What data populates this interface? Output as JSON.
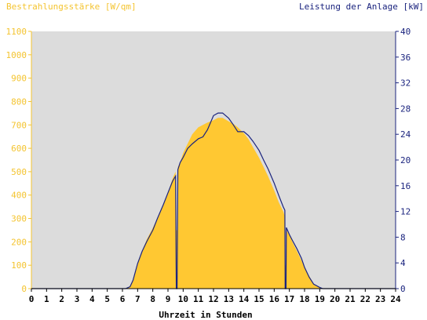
{
  "chart_data": {
    "type": "area",
    "left_axis_title": "Bestrahlungsstärke [W/qm]",
    "right_axis_title": "Leistung der Anlage [kW]",
    "xlabel": "Uhrzeit in Stunden",
    "x_ticks": [
      "0",
      "1",
      "2",
      "3",
      "4",
      "5",
      "6",
      "7",
      "8",
      "9",
      "10",
      "11",
      "12",
      "13",
      "14",
      "15",
      "16",
      "17",
      "18",
      "19",
      "20",
      "21",
      "22",
      "23",
      "24"
    ],
    "y_left_ticks": [
      "0",
      "100",
      "200",
      "300",
      "400",
      "500",
      "600",
      "700",
      "800",
      "900",
      "1000",
      "1100"
    ],
    "y_right_ticks": [
      "0",
      "4",
      "8",
      "12",
      "16",
      "20",
      "24",
      "28",
      "32",
      "36",
      "40"
    ],
    "xlim": [
      0,
      24
    ],
    "ylim_left": [
      0,
      1100
    ],
    "ylim_right": [
      0,
      40
    ],
    "colors": {
      "irradiance": "#ffc832",
      "power": "#1a237e",
      "plot_bg": "#dcdcdc",
      "left_axis": "#f4c430",
      "right_axis": "#1a237e"
    },
    "series": [
      {
        "name": "Bestrahlungsstärke",
        "axis": "left",
        "points": [
          [
            0,
            0
          ],
          [
            6.2,
            0
          ],
          [
            6.5,
            8
          ],
          [
            6.7,
            40
          ],
          [
            7,
            110
          ],
          [
            7.3,
            160
          ],
          [
            7.6,
            210
          ],
          [
            8,
            260
          ],
          [
            8.3,
            300
          ],
          [
            8.7,
            360
          ],
          [
            9,
            410
          ],
          [
            9.3,
            470
          ],
          [
            9.5,
            500
          ],
          [
            9.55,
            250
          ],
          [
            9.6,
            250
          ],
          [
            9.65,
            520
          ],
          [
            9.8,
            540
          ],
          [
            10,
            580
          ],
          [
            10.3,
            620
          ],
          [
            10.6,
            660
          ],
          [
            11,
            690
          ],
          [
            11.3,
            700
          ],
          [
            11.6,
            710
          ],
          [
            12,
            720
          ],
          [
            12.3,
            730
          ],
          [
            12.6,
            730
          ],
          [
            13,
            715
          ],
          [
            13.3,
            705
          ],
          [
            13.6,
            690
          ],
          [
            14,
            665
          ],
          [
            14.3,
            640
          ],
          [
            14.6,
            605
          ],
          [
            15,
            560
          ],
          [
            15.3,
            520
          ],
          [
            15.6,
            480
          ],
          [
            16,
            420
          ],
          [
            16.3,
            370
          ],
          [
            16.6,
            330
          ],
          [
            16.7,
            310
          ],
          [
            16.72,
            100
          ],
          [
            16.78,
            100
          ],
          [
            16.8,
            250
          ],
          [
            17,
            230
          ],
          [
            17.2,
            200
          ],
          [
            17.5,
            160
          ],
          [
            17.8,
            120
          ],
          [
            18,
            90
          ],
          [
            18.3,
            55
          ],
          [
            18.6,
            20
          ],
          [
            19,
            5
          ],
          [
            19.2,
            0
          ],
          [
            24,
            0
          ]
        ]
      },
      {
        "name": "Leistung der Anlage",
        "axis": "right",
        "points": [
          [
            0,
            0
          ],
          [
            6.2,
            0
          ],
          [
            6.5,
            0.3
          ],
          [
            6.7,
            1.3
          ],
          [
            7,
            3.9
          ],
          [
            7.3,
            5.8
          ],
          [
            7.6,
            7.3
          ],
          [
            8,
            9.1
          ],
          [
            8.3,
            10.9
          ],
          [
            8.7,
            13.1
          ],
          [
            9,
            14.9
          ],
          [
            9.3,
            16.7
          ],
          [
            9.5,
            17.5
          ],
          [
            9.55,
            0
          ],
          [
            9.6,
            0
          ],
          [
            9.65,
            18.5
          ],
          [
            9.8,
            19.6
          ],
          [
            10,
            20.4
          ],
          [
            10.3,
            21.8
          ],
          [
            10.6,
            22.5
          ],
          [
            11,
            23.3
          ],
          [
            11.3,
            23.6
          ],
          [
            11.6,
            24.7
          ],
          [
            12,
            26.9
          ],
          [
            12.3,
            27.3
          ],
          [
            12.6,
            27.3
          ],
          [
            13,
            26.5
          ],
          [
            13.3,
            25.5
          ],
          [
            13.6,
            24.4
          ],
          [
            14,
            24.4
          ],
          [
            14.3,
            23.8
          ],
          [
            14.6,
            22.9
          ],
          [
            15,
            21.5
          ],
          [
            15.3,
            20.0
          ],
          [
            15.6,
            18.6
          ],
          [
            16,
            16.4
          ],
          [
            16.3,
            14.5
          ],
          [
            16.6,
            12.7
          ],
          [
            16.7,
            12.2
          ],
          [
            16.72,
            0
          ],
          [
            16.78,
            0
          ],
          [
            16.8,
            9.5
          ],
          [
            17,
            8.4
          ],
          [
            17.2,
            7.5
          ],
          [
            17.5,
            6.2
          ],
          [
            17.8,
            4.7
          ],
          [
            18,
            3.3
          ],
          [
            18.3,
            1.8
          ],
          [
            18.6,
            0.7
          ],
          [
            19,
            0.2
          ],
          [
            19.2,
            0
          ],
          [
            24,
            0
          ]
        ]
      }
    ]
  }
}
